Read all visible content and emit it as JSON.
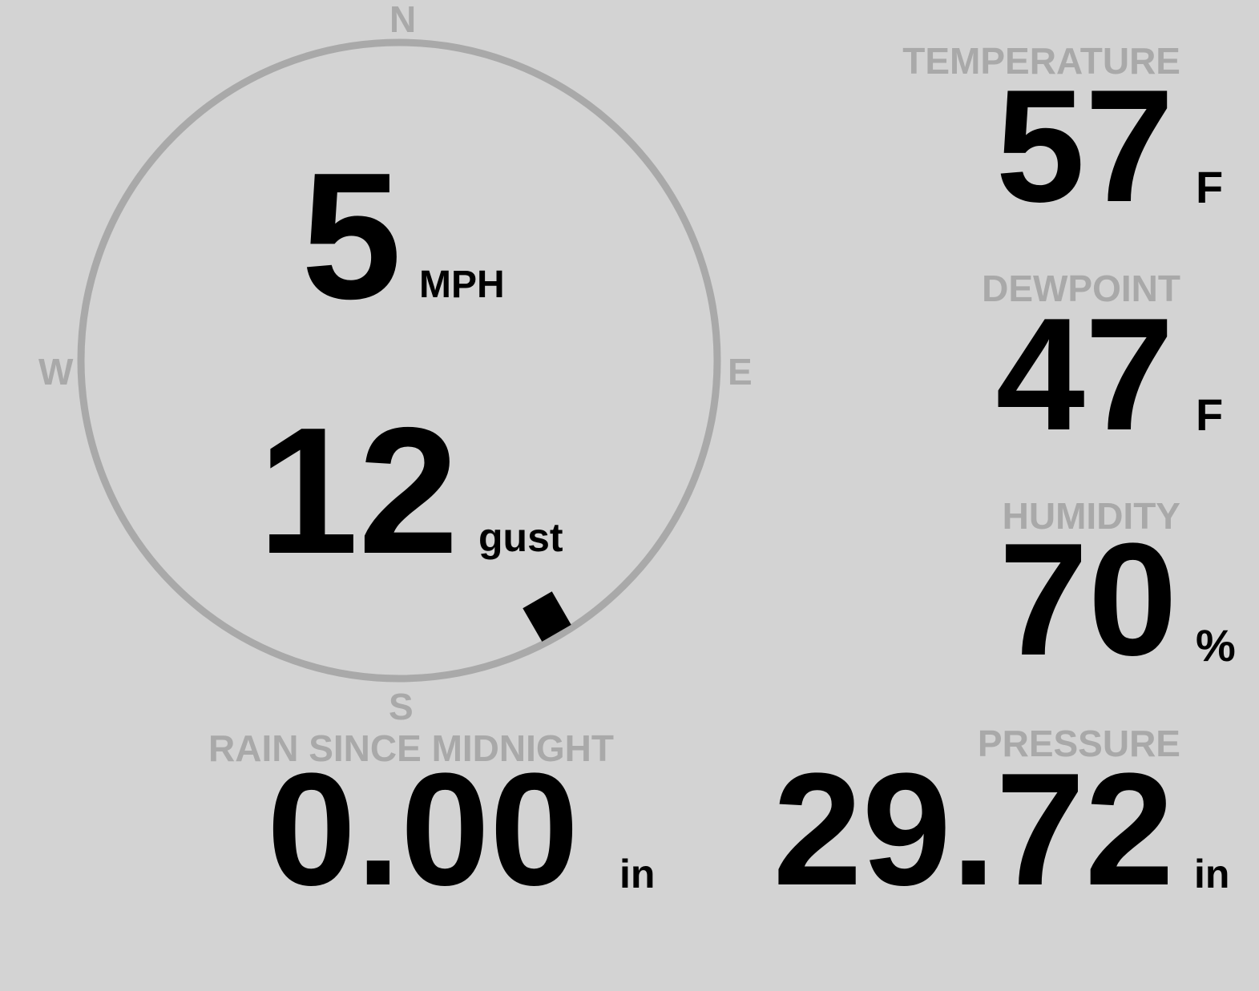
{
  "colors": {
    "background": "#d3d3d3",
    "label": "#a9a9a9",
    "value": "#000000",
    "dial": "#a9a9a9"
  },
  "wind": {
    "speed": "5",
    "speed_unit": "MPH",
    "gust": "12",
    "gust_unit": "gust",
    "direction_deg": 150,
    "compass": {
      "n": "N",
      "e": "E",
      "s": "S",
      "w": "W"
    }
  },
  "temperature": {
    "label": "TEMPERATURE",
    "value": "57",
    "unit": "F"
  },
  "dewpoint": {
    "label": "DEWPOINT",
    "value": "47",
    "unit": "F"
  },
  "humidity": {
    "label": "HUMIDITY",
    "value": "70",
    "unit": "%"
  },
  "rain": {
    "label": "RAIN SINCE MIDNIGHT",
    "value": "0.00",
    "unit": "in"
  },
  "pressure": {
    "label": "PRESSURE",
    "value": "29.72",
    "unit": "in"
  }
}
